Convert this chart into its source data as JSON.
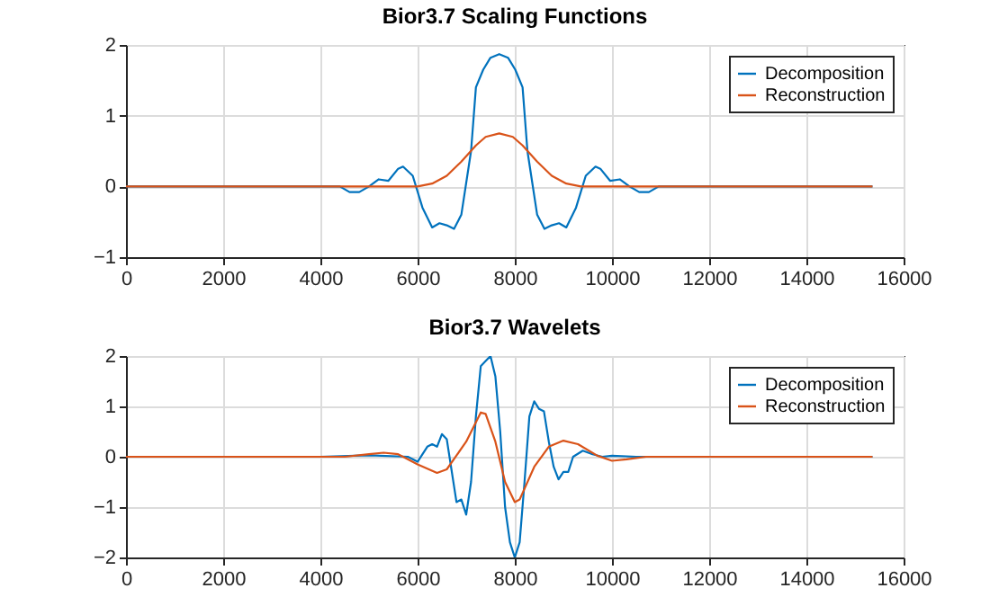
{
  "chart_data": [
    {
      "type": "line",
      "title": "Bior3.7 Scaling Functions",
      "xlim": [
        0,
        16000
      ],
      "xticks": [
        0,
        2000,
        4000,
        6000,
        8000,
        10000,
        12000,
        14000,
        16000
      ],
      "ylim": [
        -1,
        2
      ],
      "yticks": [
        -1,
        0,
        1,
        2
      ],
      "grid": true,
      "legend": "top right",
      "series": [
        {
          "name": "Decomposition",
          "color": "#0072bd",
          "x": [
            0,
            4400,
            4600,
            4800,
            5000,
            5200,
            5400,
            5600,
            5700,
            5900,
            6100,
            6300,
            6450,
            6600,
            6750,
            6900,
            7100,
            7200,
            7350,
            7500,
            7680,
            7860,
            8010,
            8160,
            8260,
            8460,
            8610,
            8760,
            8910,
            9060,
            9260,
            9460,
            9660,
            9760,
            9960,
            10160,
            10360,
            10560,
            10760,
            10960,
            15360
          ],
          "values": [
            0,
            0,
            -0.08,
            -0.08,
            0,
            0.1,
            0.08,
            0.25,
            0.28,
            0.15,
            -0.3,
            -0.58,
            -0.52,
            -0.55,
            -0.6,
            -0.4,
            0.5,
            1.4,
            1.65,
            1.82,
            1.87,
            1.82,
            1.65,
            1.4,
            0.5,
            -0.4,
            -0.6,
            -0.55,
            -0.52,
            -0.58,
            -0.3,
            0.15,
            0.28,
            0.25,
            0.08,
            0.1,
            0,
            -0.08,
            -0.08,
            0,
            0
          ]
        },
        {
          "name": "Reconstruction",
          "color": "#d95319",
          "x": [
            0,
            6000,
            6300,
            6600,
            6900,
            7200,
            7400,
            7680,
            7960,
            8160,
            8460,
            8760,
            9060,
            9360,
            15360
          ],
          "values": [
            0,
            0,
            0.04,
            0.15,
            0.35,
            0.58,
            0.7,
            0.75,
            0.7,
            0.58,
            0.35,
            0.15,
            0.04,
            0,
            0
          ]
        }
      ]
    },
    {
      "type": "line",
      "title": "Bior3.7 Wavelets",
      "xlim": [
        0,
        16000
      ],
      "xticks": [
        0,
        2000,
        4000,
        6000,
        8000,
        10000,
        12000,
        14000,
        16000
      ],
      "ylim": [
        -2,
        2
      ],
      "yticks": [
        -2,
        -1,
        0,
        1,
        2
      ],
      "grid": true,
      "legend": "top right",
      "series": [
        {
          "name": "Decomposition",
          "color": "#0072bd",
          "x": [
            0,
            4000,
            5000,
            5800,
            6000,
            6200,
            6300,
            6400,
            6500,
            6600,
            6800,
            6900,
            7000,
            7100,
            7200,
            7300,
            7400,
            7500,
            7600,
            7700,
            7800,
            7900,
            8000,
            8100,
            8200,
            8300,
            8400,
            8500,
            8600,
            8700,
            8800,
            8900,
            9000,
            9100,
            9200,
            9400,
            9600,
            9800,
            10000,
            10500,
            15360
          ],
          "values": [
            0,
            0,
            0.03,
            0,
            -0.1,
            0.2,
            0.25,
            0.2,
            0.45,
            0.35,
            -0.9,
            -0.85,
            -1.15,
            -0.5,
            0.8,
            1.8,
            1.9,
            2,
            1.6,
            0.5,
            -1,
            -1.7,
            -2,
            -1.7,
            -0.5,
            0.8,
            1.1,
            0.95,
            0.9,
            0.3,
            -0.2,
            -0.45,
            -0.3,
            -0.3,
            0,
            0.12,
            0.05,
            0,
            0.02,
            0,
            0
          ]
        },
        {
          "name": "Reconstruction",
          "color": "#d95319",
          "x": [
            0,
            4500,
            5000,
            5300,
            5600,
            6000,
            6400,
            6600,
            7000,
            7300,
            7400,
            7600,
            7800,
            8000,
            8100,
            8400,
            8700,
            9000,
            9300,
            9700,
            10000,
            10300,
            10700,
            15360
          ],
          "values": [
            0,
            0,
            0.05,
            0.08,
            0.05,
            -0.15,
            -0.32,
            -0.25,
            0.3,
            0.88,
            0.85,
            0.3,
            -0.5,
            -0.9,
            -0.85,
            -0.2,
            0.2,
            0.32,
            0.25,
            0.02,
            -0.08,
            -0.05,
            0,
            0
          ]
        }
      ]
    }
  ]
}
